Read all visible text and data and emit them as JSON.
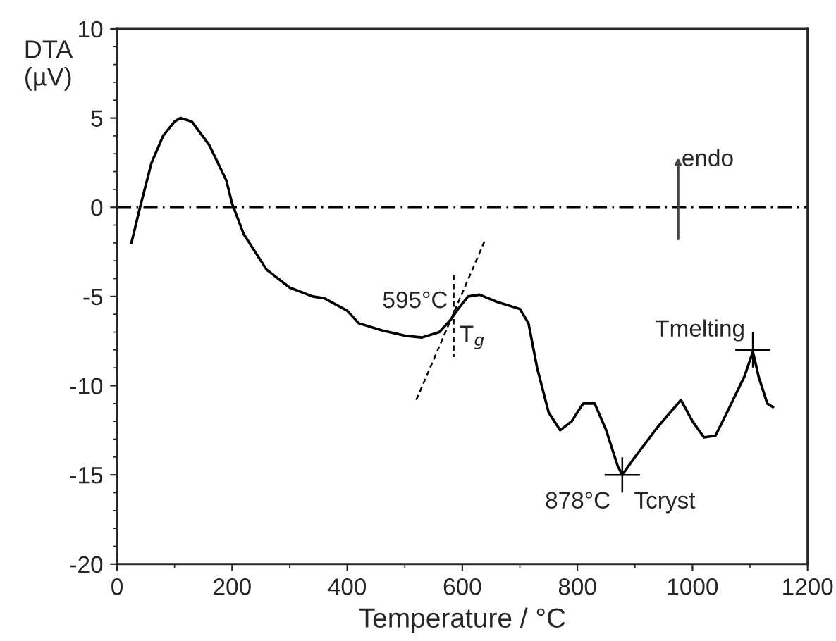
{
  "chart_data": {
    "type": "line",
    "xlabel": "Temperature / °C",
    "ylabel": "DTA\n(µV)",
    "xlim": [
      0,
      1200
    ],
    "xticks": [
      0,
      200,
      400,
      600,
      800,
      1000,
      1200
    ],
    "ylim": [
      -20,
      10
    ],
    "yticks": [
      -20,
      -15,
      -10,
      -5,
      0,
      5,
      10
    ],
    "grid": false,
    "legend": false,
    "series": [
      {
        "type": "line",
        "color": "#000000",
        "line_style": "solid",
        "x": [
          25,
          40,
          60,
          80,
          100,
          110,
          130,
          160,
          190,
          200,
          220,
          260,
          300,
          340,
          360,
          400,
          420,
          460,
          500,
          530,
          560,
          580,
          595,
          610,
          630,
          660,
          700,
          715,
          730,
          750,
          770,
          790,
          810,
          830,
          850,
          870,
          878,
          900,
          940,
          980,
          1000,
          1020,
          1040,
          1060,
          1090,
          1105,
          1115,
          1130,
          1140
        ],
        "values": [
          -2,
          0,
          2.5,
          4,
          4.8,
          5,
          4.8,
          3.5,
          1.5,
          0.2,
          -1.5,
          -3.5,
          -4.5,
          -5,
          -5.1,
          -5.8,
          -6.5,
          -6.9,
          -7.2,
          -7.3,
          -7,
          -6.3,
          -5.6,
          -5,
          -4.9,
          -5.3,
          -5.7,
          -6.5,
          -9,
          -11.5,
          -12.5,
          -12,
          -11,
          -11,
          -12.5,
          -14.5,
          -15,
          -14,
          -12.3,
          -10.8,
          -12,
          -12.9,
          -12.8,
          -11.5,
          -9.5,
          -8.1,
          -9.5,
          -11,
          -11.2
        ]
      },
      {
        "type": "line",
        "color": "#000000",
        "line_style": "dashed",
        "x": [
          520,
          640
        ],
        "values": [
          -10.8,
          -1.8
        ]
      },
      {
        "type": "line",
        "color": "#000000",
        "line_style": "dashed",
        "x": [
          585,
          585
        ],
        "values": [
          -3.8,
          -8.4
        ]
      },
      {
        "type": "scatter",
        "color": "#000000",
        "marker": "cross",
        "x": [
          878,
          1105
        ],
        "values": [
          -15,
          -8
        ]
      }
    ],
    "ref_lines": [
      {
        "axis": "y",
        "value": 0,
        "color": "#000000",
        "line_style": "dashdot"
      }
    ],
    "annotations": [
      {
        "text": "595°C",
        "x": 575,
        "y": -5.3
      },
      {
        "text": "T$_{g}$",
        "x": 595,
        "y": -7.3
      },
      {
        "text": "Tmelting",
        "x": 1105,
        "y": -8
      },
      {
        "text": "878°C",
        "x": 878,
        "y": -15
      },
      {
        "text": "Tcryst",
        "x": 878,
        "y": -15
      },
      "endo"
    ]
  }
}
